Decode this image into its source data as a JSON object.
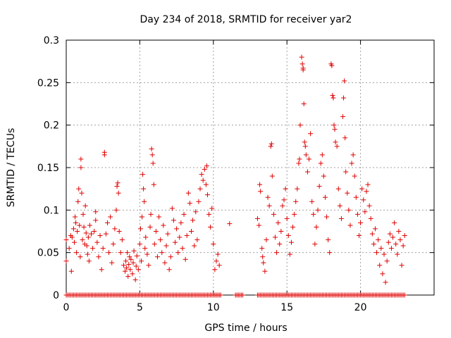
{
  "chart_data": {
    "type": "scatter",
    "title": "Day 234 of 2018, SRMTID for receiver yar2",
    "xlabel": "GPS time / hours",
    "ylabel": "SRMTID / TECUs",
    "xlim": [
      0,
      25
    ],
    "ylim": [
      0,
      0.3
    ],
    "xticks": [
      "0",
      "5",
      "10",
      "15",
      "20"
    ],
    "yticks": [
      "0",
      "0.05",
      "0.1",
      "0.15",
      "0.2",
      "0.25",
      "0.3"
    ],
    "grid": true,
    "marker": "+",
    "series": [
      {
        "name": "SRMTID",
        "color": "#e00000",
        "points": [
          [
            0.0,
            0.065
          ],
          [
            0.0,
            0.04
          ],
          [
            0.2,
            0.055
          ],
          [
            0.3,
            0.07
          ],
          [
            0.35,
            0.028
          ],
          [
            0.4,
            0.068
          ],
          [
            0.5,
            0.078
          ],
          [
            0.55,
            0.062
          ],
          [
            0.6,
            0.092
          ],
          [
            0.65,
            0.085
          ],
          [
            0.7,
            0.05
          ],
          [
            0.75,
            0.075
          ],
          [
            0.8,
            0.11
          ],
          [
            0.85,
            0.125
          ],
          [
            0.9,
            0.082
          ],
          [
            0.95,
            0.045
          ],
          [
            1.0,
            0.16
          ],
          [
            1.0,
            0.15
          ],
          [
            1.05,
            0.12
          ],
          [
            1.1,
            0.065
          ],
          [
            1.15,
            0.095
          ],
          [
            1.2,
            0.08
          ],
          [
            1.25,
            0.06
          ],
          [
            1.3,
            0.105
          ],
          [
            1.35,
            0.073
          ],
          [
            1.4,
            0.058
          ],
          [
            1.45,
            0.048
          ],
          [
            1.5,
            0.068
          ],
          [
            1.55,
            0.04
          ],
          [
            1.6,
            0.082
          ],
          [
            1.7,
            0.072
          ],
          [
            1.8,
            0.055
          ],
          [
            1.9,
            0.075
          ],
          [
            2.0,
            0.088
          ],
          [
            2.0,
            0.098
          ],
          [
            2.1,
            0.062
          ],
          [
            2.2,
            0.045
          ],
          [
            2.3,
            0.07
          ],
          [
            2.4,
            0.03
          ],
          [
            2.5,
            0.055
          ],
          [
            2.6,
            0.165
          ],
          [
            2.6,
            0.168
          ],
          [
            2.7,
            0.072
          ],
          [
            2.8,
            0.085
          ],
          [
            2.9,
            0.05
          ],
          [
            3.0,
            0.092
          ],
          [
            3.1,
            0.038
          ],
          [
            3.2,
            0.06
          ],
          [
            3.3,
            0.078
          ],
          [
            3.4,
            0.1
          ],
          [
            3.45,
            0.128
          ],
          [
            3.5,
            0.132
          ],
          [
            3.55,
            0.12
          ],
          [
            3.6,
            0.075
          ],
          [
            3.7,
            0.05
          ],
          [
            3.8,
            0.065
          ],
          [
            3.9,
            0.035
          ],
          [
            4.0,
            0.028
          ],
          [
            4.05,
            0.04
          ],
          [
            4.1,
            0.032
          ],
          [
            4.15,
            0.05
          ],
          [
            4.2,
            0.022
          ],
          [
            4.25,
            0.036
          ],
          [
            4.3,
            0.045
          ],
          [
            4.35,
            0.03
          ],
          [
            4.4,
            0.042
          ],
          [
            4.5,
            0.025
          ],
          [
            4.55,
            0.038
          ],
          [
            4.6,
            0.052
          ],
          [
            4.7,
            0.018
          ],
          [
            4.75,
            0.034
          ],
          [
            4.8,
            0.046
          ],
          [
            4.9,
            0.03
          ],
          [
            5.0,
            0.06
          ],
          [
            5.05,
            0.078
          ],
          [
            5.1,
            0.04
          ],
          [
            5.15,
            0.092
          ],
          [
            5.2,
            0.142
          ],
          [
            5.25,
            0.125
          ],
          [
            5.3,
            0.11
          ],
          [
            5.35,
            0.055
          ],
          [
            5.4,
            0.068
          ],
          [
            5.5,
            0.048
          ],
          [
            5.6,
            0.035
          ],
          [
            5.7,
            0.08
          ],
          [
            5.75,
            0.095
          ],
          [
            5.8,
            0.172
          ],
          [
            5.85,
            0.165
          ],
          [
            5.9,
            0.155
          ],
          [
            5.95,
            0.13
          ],
          [
            6.0,
            0.06
          ],
          [
            6.1,
            0.075
          ],
          [
            6.2,
            0.045
          ],
          [
            6.3,
            0.092
          ],
          [
            6.4,
            0.065
          ],
          [
            6.5,
            0.05
          ],
          [
            6.6,
            0.082
          ],
          [
            6.7,
            0.038
          ],
          [
            6.8,
            0.058
          ],
          [
            6.9,
            0.072
          ],
          [
            7.0,
            0.03
          ],
          [
            7.1,
            0.045
          ],
          [
            7.2,
            0.102
          ],
          [
            7.3,
            0.088
          ],
          [
            7.4,
            0.062
          ],
          [
            7.5,
            0.078
          ],
          [
            7.6,
            0.05
          ],
          [
            7.7,
            0.068
          ],
          [
            7.8,
            0.085
          ],
          [
            7.9,
            0.055
          ],
          [
            8.0,
            0.095
          ],
          [
            8.1,
            0.042
          ],
          [
            8.2,
            0.07
          ],
          [
            8.3,
            0.12
          ],
          [
            8.4,
            0.108
          ],
          [
            8.5,
            0.075
          ],
          [
            8.6,
            0.088
          ],
          [
            8.7,
            0.058
          ],
          [
            8.8,
            0.098
          ],
          [
            8.9,
            0.065
          ],
          [
            9.0,
            0.11
          ],
          [
            9.1,
            0.125
          ],
          [
            9.2,
            0.142
          ],
          [
            9.3,
            0.135
          ],
          [
            9.4,
            0.148
          ],
          [
            9.5,
            0.13
          ],
          [
            9.55,
            0.152
          ],
          [
            9.6,
            0.118
          ],
          [
            9.7,
            0.095
          ],
          [
            9.8,
            0.08
          ],
          [
            9.9,
            0.102
          ],
          [
            10.0,
            0.06
          ],
          [
            10.1,
            0.03
          ],
          [
            10.2,
            0.04
          ],
          [
            10.3,
            0.048
          ],
          [
            10.4,
            0.035
          ],
          [
            11.1,
            0.084
          ],
          [
            13.0,
            0.09
          ],
          [
            13.1,
            0.082
          ],
          [
            13.15,
            0.13
          ],
          [
            13.2,
            0.122
          ],
          [
            13.3,
            0.055
          ],
          [
            13.35,
            0.045
          ],
          [
            13.4,
            0.038
          ],
          [
            13.5,
            0.028
          ],
          [
            13.6,
            0.065
          ],
          [
            13.7,
            0.115
          ],
          [
            13.8,
            0.105
          ],
          [
            13.9,
            0.175
          ],
          [
            13.95,
            0.178
          ],
          [
            14.0,
            0.14
          ],
          [
            14.1,
            0.095
          ],
          [
            14.2,
            0.068
          ],
          [
            14.3,
            0.05
          ],
          [
            14.4,
            0.085
          ],
          [
            14.5,
            0.06
          ],
          [
            14.6,
            0.075
          ],
          [
            14.7,
            0.105
          ],
          [
            14.8,
            0.112
          ],
          [
            14.9,
            0.125
          ],
          [
            15.0,
            0.09
          ],
          [
            15.1,
            0.07
          ],
          [
            15.2,
            0.048
          ],
          [
            15.3,
            0.062
          ],
          [
            15.4,
            0.08
          ],
          [
            15.5,
            0.095
          ],
          [
            15.6,
            0.11
          ],
          [
            15.7,
            0.125
          ],
          [
            15.8,
            0.155
          ],
          [
            15.85,
            0.16
          ],
          [
            15.9,
            0.2
          ],
          [
            16.0,
            0.28
          ],
          [
            16.05,
            0.272
          ],
          [
            16.1,
            0.265
          ],
          [
            16.1,
            0.267
          ],
          [
            16.15,
            0.225
          ],
          [
            16.2,
            0.18
          ],
          [
            16.25,
            0.175
          ],
          [
            16.3,
            0.165
          ],
          [
            16.4,
            0.145
          ],
          [
            16.5,
            0.16
          ],
          [
            16.6,
            0.19
          ],
          [
            16.7,
            0.11
          ],
          [
            16.8,
            0.095
          ],
          [
            16.9,
            0.06
          ],
          [
            17.0,
            0.08
          ],
          [
            17.1,
            0.1
          ],
          [
            17.2,
            0.128
          ],
          [
            17.3,
            0.155
          ],
          [
            17.4,
            0.165
          ],
          [
            17.5,
            0.14
          ],
          [
            17.6,
            0.115
          ],
          [
            17.7,
            0.092
          ],
          [
            17.8,
            0.065
          ],
          [
            17.9,
            0.05
          ],
          [
            18.0,
            0.272
          ],
          [
            18.05,
            0.27
          ],
          [
            18.1,
            0.235
          ],
          [
            18.15,
            0.232
          ],
          [
            18.2,
            0.2
          ],
          [
            18.25,
            0.195
          ],
          [
            18.3,
            0.18
          ],
          [
            18.4,
            0.175
          ],
          [
            18.5,
            0.125
          ],
          [
            18.6,
            0.105
          ],
          [
            18.7,
            0.09
          ],
          [
            18.8,
            0.21
          ],
          [
            18.85,
            0.232
          ],
          [
            18.9,
            0.252
          ],
          [
            18.95,
            0.185
          ],
          [
            19.0,
            0.145
          ],
          [
            19.1,
            0.12
          ],
          [
            19.2,
            0.1
          ],
          [
            19.3,
            0.082
          ],
          [
            19.4,
            0.155
          ],
          [
            19.5,
            0.165
          ],
          [
            19.6,
            0.14
          ],
          [
            19.7,
            0.115
          ],
          [
            19.8,
            0.095
          ],
          [
            19.9,
            0.07
          ],
          [
            20.0,
            0.085
          ],
          [
            20.1,
            0.125
          ],
          [
            20.2,
            0.112
          ],
          [
            20.3,
            0.098
          ],
          [
            20.4,
            0.122
          ],
          [
            20.5,
            0.13
          ],
          [
            20.6,
            0.105
          ],
          [
            20.7,
            0.09
          ],
          [
            20.8,
            0.072
          ],
          [
            20.9,
            0.06
          ],
          [
            21.0,
            0.078
          ],
          [
            21.1,
            0.05
          ],
          [
            21.2,
            0.065
          ],
          [
            21.3,
            0.035
          ],
          [
            21.4,
            0.055
          ],
          [
            21.5,
            0.025
          ],
          [
            21.6,
            0.048
          ],
          [
            21.7,
            0.015
          ],
          [
            21.8,
            0.04
          ],
          [
            21.9,
            0.062
          ],
          [
            22.0,
            0.072
          ],
          [
            22.1,
            0.055
          ],
          [
            22.2,
            0.068
          ],
          [
            22.3,
            0.085
          ],
          [
            22.4,
            0.06
          ],
          [
            22.5,
            0.048
          ],
          [
            22.6,
            0.075
          ],
          [
            22.7,
            0.065
          ],
          [
            22.8,
            0.035
          ],
          [
            22.9,
            0.058
          ],
          [
            23.0,
            0.07
          ]
        ],
        "zero_rug_ranges": [
          [
            0.0,
            10.5
          ],
          [
            11.5,
            12.0
          ],
          [
            13.0,
            23.0
          ]
        ]
      }
    ]
  }
}
